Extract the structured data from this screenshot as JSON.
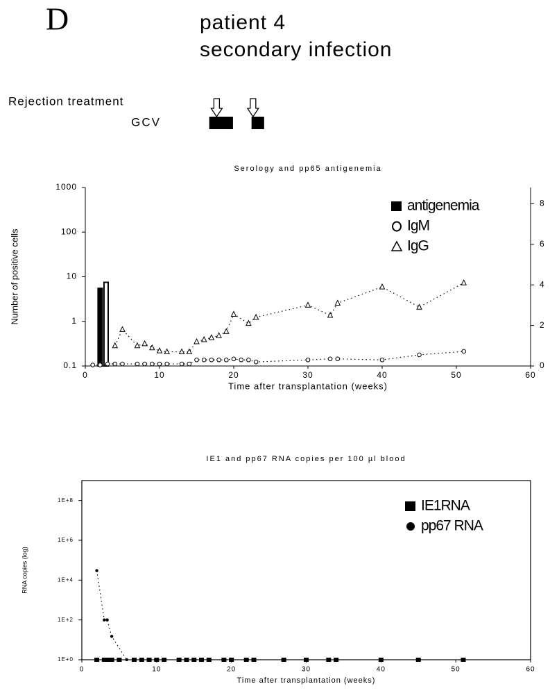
{
  "header": {
    "panel": "D",
    "title": [
      "patient 4",
      "secondary infection"
    ]
  },
  "treatment": {
    "labels": [
      "Rejection treatment",
      "GCV"
    ],
    "rejection_weeks": [
      17.7,
      22.6
    ],
    "gcv_periods": [
      [
        16.7,
        19.9
      ],
      [
        22.4,
        24.1
      ]
    ]
  },
  "chart_data": [
    {
      "type": "bar",
      "title": "Serology and pp65 antigenemia",
      "xlabel": "Time after transplantation (weeks)",
      "ylabel": "Number of positive cells",
      "xlim": [
        0,
        60
      ],
      "xticks": [
        0,
        10,
        20,
        30,
        40,
        50,
        60
      ],
      "ylim": [
        0.1,
        1000
      ],
      "yticks": [
        0.1,
        1,
        10,
        100,
        1000
      ],
      "log_y": true,
      "y2lim": [
        0,
        8.8
      ],
      "y2ticks": [
        0,
        2,
        4,
        6,
        8
      ],
      "legend": "upper right",
      "series": [
        {
          "name": "antigenemia",
          "type": "bar",
          "marker": "square",
          "color": "#000000",
          "x": [
            2,
            2.8
          ],
          "values": [
            5.5,
            7.5
          ]
        },
        {
          "name": "IgM",
          "type": "line",
          "marker": "circle",
          "color": "#000000",
          "axis": "y2",
          "x": [
            1,
            2,
            3,
            4,
            5,
            7,
            8,
            9,
            10,
            11,
            13,
            14,
            15,
            16,
            17,
            18,
            19,
            20,
            21,
            22,
            23,
            30,
            33,
            34,
            40,
            45,
            51
          ],
          "values": [
            0.05,
            0.05,
            0.1,
            0.1,
            0.1,
            0.1,
            0.1,
            0.1,
            0.1,
            0.1,
            0.1,
            0.1,
            0.3,
            0.3,
            0.3,
            0.3,
            0.3,
            0.35,
            0.3,
            0.3,
            0.2,
            0.3,
            0.35,
            0.35,
            0.3,
            0.55,
            0.72
          ]
        },
        {
          "name": "IgG",
          "type": "line",
          "marker": "triangle",
          "color": "#000000",
          "axis": "y2",
          "x": [
            4,
            5,
            7,
            8,
            9,
            10,
            11,
            13,
            14,
            15,
            16,
            17,
            18,
            19,
            20,
            22,
            23,
            30,
            33,
            34,
            40,
            45,
            51
          ],
          "values": [
            1.0,
            1.8,
            1.0,
            1.1,
            0.9,
            0.75,
            0.7,
            0.7,
            0.7,
            1.2,
            1.3,
            1.4,
            1.5,
            1.7,
            2.55,
            2.1,
            2.4,
            3.0,
            2.5,
            3.1,
            3.9,
            2.9,
            4.1
          ]
        }
      ]
    },
    {
      "type": "scatter",
      "title": "IE1 and pp67 RNA copies per 100 µl blood",
      "xlabel": "Time after transplantation (weeks)",
      "ylabel": "RNA copies (log)",
      "xlim": [
        0,
        60
      ],
      "xticks": [
        0,
        10,
        20,
        30,
        40,
        50,
        60
      ],
      "ylim": [
        1,
        1000000000
      ],
      "log_y": true,
      "yticks": [
        {
          "value": 1,
          "label": "1E+0"
        },
        {
          "value": 100,
          "label": "1E+2"
        },
        {
          "value": 10000,
          "label": "1E+4"
        },
        {
          "value": 1000000,
          "label": "1E+6"
        },
        {
          "value": 100000000,
          "label": "1E+8"
        }
      ],
      "legend": "upper right",
      "series": [
        {
          "name": "IE1RNA",
          "type": "scatter",
          "marker": "square",
          "color": "#000000",
          "x": [
            2,
            3,
            3.5,
            4,
            5,
            7,
            8,
            9,
            10,
            11,
            13,
            14,
            15,
            16,
            17,
            19,
            20,
            22,
            23,
            27,
            30,
            33,
            34,
            40,
            45,
            51
          ],
          "values": [
            1,
            1,
            1,
            1,
            1,
            1,
            1,
            1,
            1,
            1,
            1,
            1,
            1,
            1,
            1,
            1,
            1,
            1,
            1,
            1,
            1,
            1,
            1,
            1,
            1,
            1
          ]
        },
        {
          "name": "pp67 RNA",
          "type": "line",
          "marker": "dot",
          "color": "#000000",
          "x": [
            2,
            3,
            3.4,
            4,
            6
          ],
          "values": [
            30000,
            100,
            100,
            15,
            1
          ]
        }
      ]
    }
  ]
}
